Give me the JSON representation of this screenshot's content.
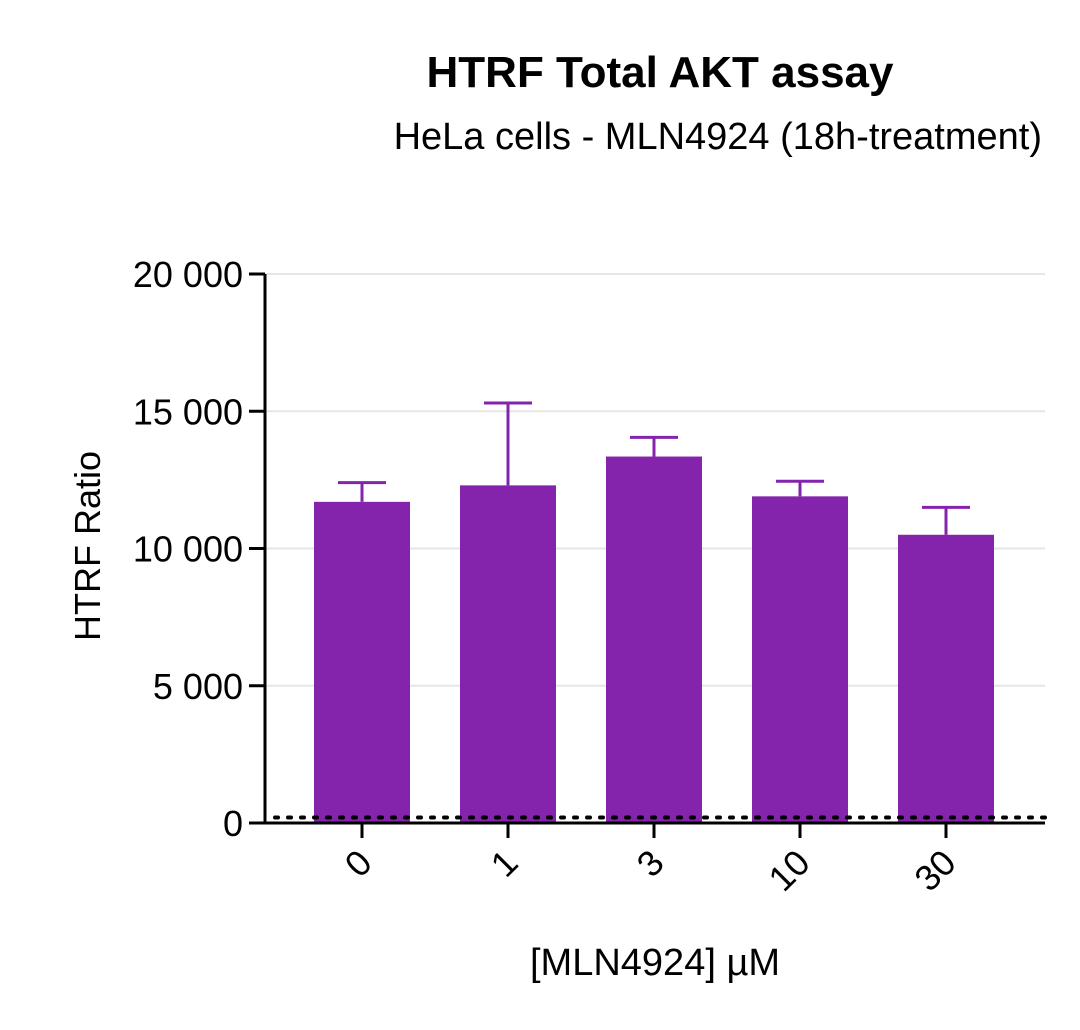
{
  "chart_data": {
    "type": "bar",
    "title": "HTRF Total AKT assay",
    "subtitle": "HeLa cells - MLN4924 (18h-treatment)",
    "xlabel": "[MLN4924] µM",
    "ylabel": "HTRF Ratio",
    "categories": [
      "0",
      "1",
      "3",
      "10",
      "30"
    ],
    "values": [
      11700,
      12300,
      13350,
      11900,
      10500
    ],
    "error_upper": [
      12400,
      15300,
      14050,
      12450,
      11500
    ],
    "ylim": [
      0,
      20000
    ],
    "yticks": [
      0,
      5000,
      10000,
      15000,
      20000
    ],
    "ytick_labels": [
      "0",
      "5 000",
      "10 000",
      "15 000",
      "20 000"
    ],
    "grid": true,
    "baseline_dotted": 200,
    "bar_color": "#8424AD",
    "legend": null
  }
}
